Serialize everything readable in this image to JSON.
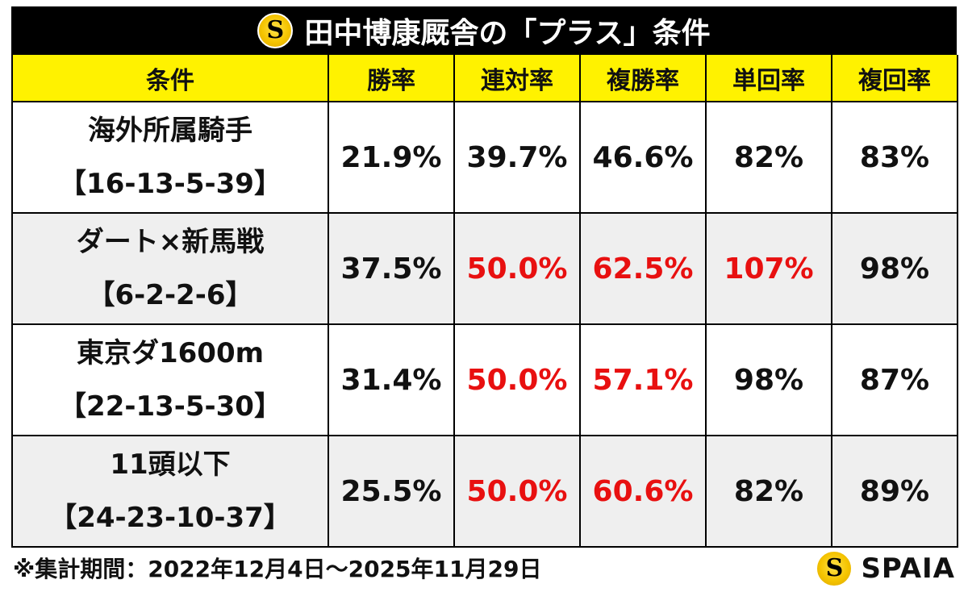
{
  "title": "田中博康厩舎の「プラス」条件",
  "headers": [
    "条件",
    "勝率",
    "連対率",
    "複勝率",
    "単回率",
    "複回率"
  ],
  "rows": [
    {
      "condition": "海外所属騎手",
      "record": "【16-13-5-39】",
      "values": [
        "21.9%",
        "39.7%",
        "46.6%",
        "82%",
        "83%"
      ]
    },
    {
      "condition": "ダート×新馬戦",
      "record": "【6-2-2-6】",
      "values": [
        "37.5%",
        "50.0%",
        "62.5%",
        "107%",
        "98%"
      ]
    },
    {
      "condition": "東京ダ1600m",
      "record": "【22-13-5-30】",
      "values": [
        "31.4%",
        "50.0%",
        "57.1%",
        "98%",
        "87%"
      ]
    },
    {
      "condition": "11頭以下",
      "record": "【24-23-10-37】",
      "values": [
        "25.5%",
        "50.0%",
        "60.6%",
        "82%",
        "89%"
      ]
    }
  ],
  "highlight_color": "#e81010",
  "footnote": "※集計期間：2022年12月4日～2025年11月29日",
  "brand": "SPAIA"
}
